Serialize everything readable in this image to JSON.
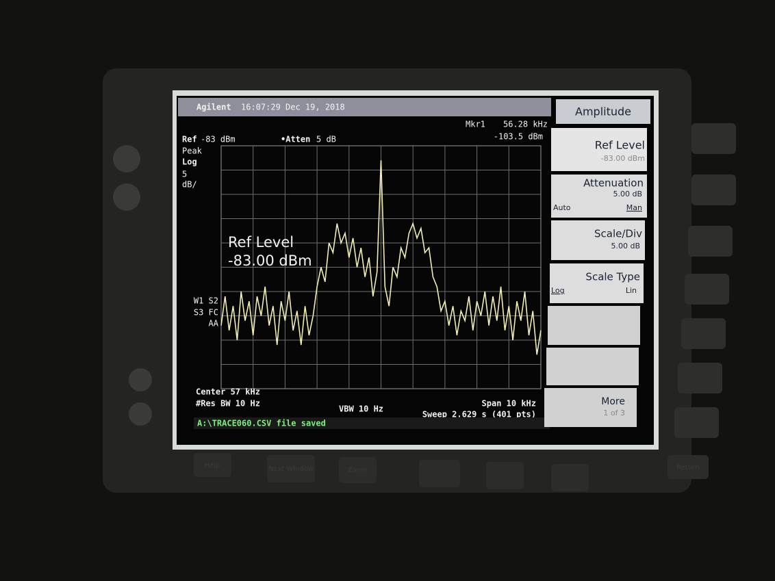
{
  "header": {
    "brand": "Agilent",
    "timestamp": "16:07:29  Dec 19, 2018"
  },
  "marker": {
    "label": "Mkr1",
    "frequency": "56.28 kHz",
    "level": "-103.5 dBm"
  },
  "settings": {
    "ref": "Ref",
    "ref_value": "-83 dBm",
    "atten": "•Atten",
    "atten_value": "5 dB"
  },
  "left_panel": [
    "Peak",
    "Log",
    "5",
    "dB/",
    "W1 S2",
    "S3 FC",
    "AA"
  ],
  "overlay": {
    "title": "Ref Level",
    "value": "-83.00 dBm"
  },
  "footer": {
    "center": "Center 57 kHz",
    "res_bw": "#Res BW 10 Hz",
    "vbw": "VBW 10 Hz",
    "span": "Span 10 kHz",
    "sweep": "Sweep 2.629 s (401 pts)"
  },
  "status": "A:\\TRACE060.CSV file saved",
  "menu": {
    "title": "Amplitude",
    "keys": [
      {
        "label": "Ref Level",
        "value": "-83.00 dBm"
      },
      {
        "label": "Attenuation",
        "value": "5.00 dB",
        "left": "Auto",
        "right": "Man"
      },
      {
        "label": "Scale/Div",
        "value": "5.00 dB"
      },
      {
        "label": "Scale Type",
        "left": "Log",
        "right": "Lin"
      },
      {
        "label": "More",
        "value": "1 of 3"
      }
    ]
  },
  "buttons": [
    "Help",
    "Next Window",
    "Zoom",
    "Return"
  ],
  "trace": {
    "ylim": [
      -133,
      -83
    ],
    "values": [
      -120,
      -114,
      -121,
      -116,
      -123,
      -113,
      -119,
      -115,
      -122,
      -114,
      -118,
      -112,
      -120,
      -116,
      -124,
      -115,
      -119,
      -113,
      -121,
      -117,
      -124,
      -116,
      -122,
      -118,
      -112,
      -108,
      -111,
      -103,
      -105,
      -99,
      -103,
      -101,
      -106,
      -102,
      -108,
      -104,
      -110,
      -106,
      -114,
      -109,
      -86,
      -112,
      -116,
      -108,
      -110,
      -104,
      -106,
      -101,
      -99,
      -102,
      -100,
      -105,
      -104,
      -110,
      -112,
      -117,
      -115,
      -120,
      -116,
      -122,
      -117,
      -119,
      -114,
      -121,
      -115,
      -118,
      -113,
      -120,
      -114,
      -119,
      -112,
      -121,
      -116,
      -123,
      -115,
      -119,
      -113,
      -122,
      -117,
      -126,
      -121
    ]
  }
}
